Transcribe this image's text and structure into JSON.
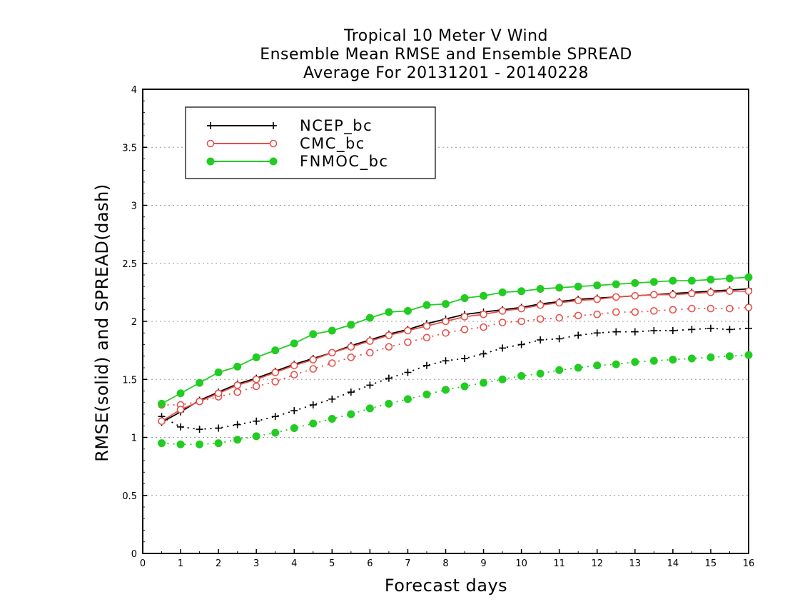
{
  "chart_data": {
    "type": "line",
    "title_lines": [
      "Tropical 10 Meter V Wind",
      "Ensemble Mean RMSE and Ensemble SPREAD",
      "Average For 20131201 - 20140228"
    ],
    "xlabel": "Forecast days",
    "ylabel": "RMSE(solid) and SPREAD(dash)",
    "xlim": [
      0,
      16
    ],
    "ylim": [
      0,
      4
    ],
    "x_ticks": [
      "0",
      "1",
      "2",
      "3",
      "4",
      "5",
      "6",
      "7",
      "8",
      "9",
      "10",
      "11",
      "12",
      "13",
      "14",
      "15",
      "16"
    ],
    "y_ticks": [
      "0",
      "0.5",
      "1",
      "1.5",
      "2",
      "2.5",
      "3",
      "3.5",
      "4"
    ],
    "grid": "horizontal dotted",
    "legend_position": "top-left",
    "x": [
      0.5,
      1,
      1.5,
      2,
      2.5,
      3,
      3.5,
      4,
      4.5,
      5,
      5.5,
      6,
      6.5,
      7,
      7.5,
      8,
      8.5,
      9,
      9.5,
      10,
      10.5,
      11,
      11.5,
      12,
      12.5,
      13,
      13.5,
      14,
      14.5,
      15,
      15.5,
      16
    ],
    "series": [
      {
        "name": "NCEP_bc",
        "color": "#000000",
        "marker": "plus",
        "rmse": [
          1.13,
          1.22,
          1.32,
          1.39,
          1.46,
          1.51,
          1.57,
          1.63,
          1.68,
          1.73,
          1.79,
          1.84,
          1.89,
          1.93,
          1.98,
          2.02,
          2.06,
          2.08,
          2.1,
          2.12,
          2.15,
          2.17,
          2.19,
          2.2,
          2.21,
          2.22,
          2.23,
          2.24,
          2.25,
          2.26,
          2.27,
          2.28
        ],
        "spread": [
          1.18,
          1.09,
          1.07,
          1.08,
          1.11,
          1.14,
          1.18,
          1.23,
          1.28,
          1.33,
          1.39,
          1.45,
          1.51,
          1.56,
          1.62,
          1.66,
          1.68,
          1.72,
          1.77,
          1.8,
          1.84,
          1.85,
          1.88,
          1.9,
          1.91,
          1.91,
          1.92,
          1.92,
          1.93,
          1.94,
          1.93,
          1.94
        ]
      },
      {
        "name": "CMC_bc",
        "color": "#e8504a",
        "marker": "open-circle",
        "rmse": [
          1.14,
          1.24,
          1.31,
          1.38,
          1.45,
          1.5,
          1.56,
          1.62,
          1.67,
          1.73,
          1.78,
          1.83,
          1.88,
          1.92,
          1.96,
          2.0,
          2.04,
          2.06,
          2.09,
          2.11,
          2.14,
          2.16,
          2.18,
          2.19,
          2.21,
          2.22,
          2.23,
          2.23,
          2.24,
          2.25,
          2.26,
          2.26
        ],
        "spread": [
          1.28,
          1.28,
          1.31,
          1.35,
          1.39,
          1.44,
          1.48,
          1.54,
          1.59,
          1.64,
          1.69,
          1.73,
          1.78,
          1.82,
          1.86,
          1.9,
          1.93,
          1.95,
          1.99,
          2.0,
          2.02,
          2.03,
          2.05,
          2.06,
          2.08,
          2.08,
          2.09,
          2.1,
          2.11,
          2.11,
          2.11,
          2.12
        ]
      },
      {
        "name": "FNMOC_bc",
        "color": "#22cc22",
        "marker": "filled-circle",
        "rmse": [
          1.29,
          1.38,
          1.47,
          1.56,
          1.61,
          1.69,
          1.75,
          1.81,
          1.89,
          1.92,
          1.97,
          2.03,
          2.08,
          2.09,
          2.14,
          2.15,
          2.2,
          2.22,
          2.25,
          2.26,
          2.28,
          2.29,
          2.3,
          2.31,
          2.32,
          2.33,
          2.34,
          2.35,
          2.35,
          2.36,
          2.37,
          2.38
        ],
        "spread": [
          0.95,
          0.94,
          0.94,
          0.95,
          0.98,
          1.01,
          1.04,
          1.08,
          1.12,
          1.16,
          1.2,
          1.25,
          1.29,
          1.33,
          1.37,
          1.41,
          1.44,
          1.47,
          1.5,
          1.53,
          1.55,
          1.58,
          1.6,
          1.62,
          1.63,
          1.65,
          1.66,
          1.67,
          1.68,
          1.69,
          1.7,
          1.71
        ]
      }
    ]
  }
}
